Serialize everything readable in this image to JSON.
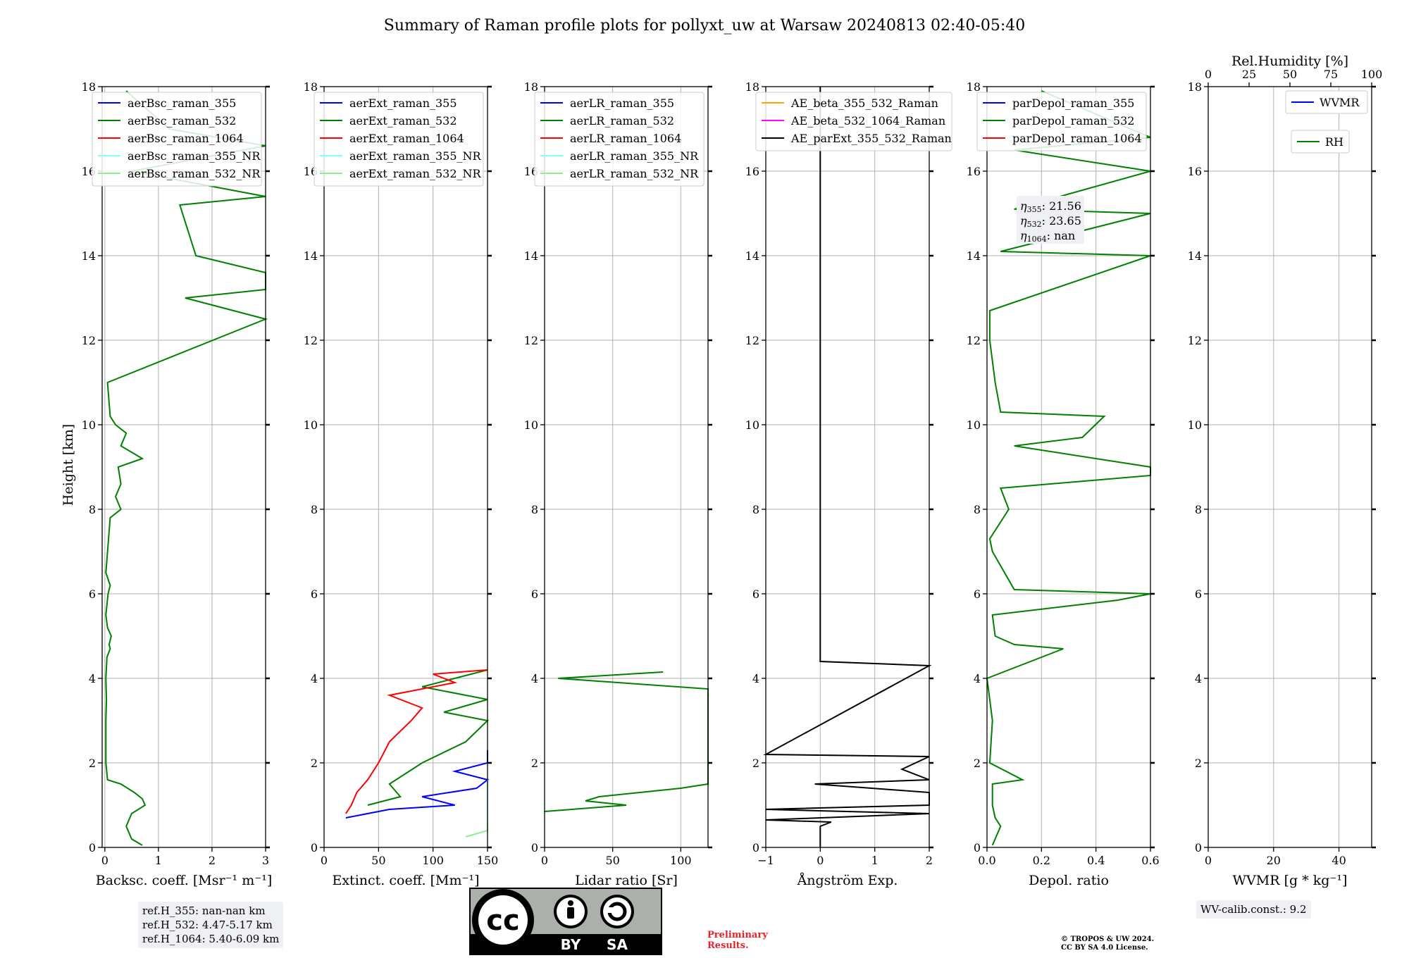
{
  "figure": {
    "title": "Summary of Raman profile plots for pollyxt_uw at Warsaw 20240813 02:40-05:40",
    "ylabel": "Height [km]",
    "y_ticks": [
      "0",
      "2",
      "4",
      "6",
      "8",
      "10",
      "12",
      "14",
      "16",
      "18"
    ],
    "ylim": [
      0,
      18
    ]
  },
  "chart_data": [
    {
      "id": "backscatter",
      "type": "line",
      "xlabel": "Backsc. coeff. [Msr⁻¹ m⁻¹]",
      "xlim": [
        -0.05,
        3
      ],
      "x_ticks": [
        "0",
        "1",
        "2",
        "3"
      ],
      "x_tick_values": [
        0,
        1,
        2,
        3
      ],
      "legend": [
        "aerBsc_raman_355",
        "aerBsc_raman_532",
        "aerBsc_raman_1064",
        "aerBsc_raman_355_NR",
        "aerBsc_raman_532_NR"
      ],
      "legend_colors": [
        "#0000ff",
        "#008000",
        "#ff0000",
        "#7fffff",
        "#90ee90"
      ],
      "legend_location": "upper-left",
      "series": [
        {
          "name": "aerBsc_raman_532",
          "color": "#008000",
          "height_km": [
            0.05,
            0.2,
            0.5,
            0.8,
            1.0,
            1.15,
            1.3,
            1.5,
            1.6,
            2.0,
            2.5,
            3.0,
            3.5,
            4.0,
            4.5,
            4.7,
            4.8,
            5.0,
            5.2,
            5.5,
            6.0,
            6.2,
            6.5,
            7.8,
            8.0,
            8.3,
            8.6,
            9.0,
            9.2,
            9.5,
            9.8,
            10.0,
            10.2,
            11.0,
            12.5,
            13.0,
            13.2,
            13.6,
            14.0,
            15.2,
            15.4,
            16.0,
            16.6,
            17.0,
            17.9
          ],
          "values": [
            0.7,
            0.5,
            0.4,
            0.5,
            0.75,
            0.7,
            0.55,
            0.3,
            0.05,
            0.02,
            0.02,
            0.02,
            0.03,
            0.02,
            0.04,
            0.1,
            0.08,
            0.12,
            0.05,
            0.02,
            0.06,
            0.1,
            0.02,
            0.1,
            0.3,
            0.2,
            0.3,
            0.25,
            0.7,
            0.3,
            0.4,
            0.2,
            0.1,
            0.05,
            3.0,
            1.5,
            3.0,
            3.0,
            1.7,
            1.4,
            3.0,
            0.5,
            3.0,
            1.2,
            0.4
          ]
        }
      ]
    },
    {
      "id": "extinction",
      "type": "line",
      "xlabel": "Extinct. coeff. [Mm⁻¹]",
      "xlim": [
        0,
        150
      ],
      "x_ticks": [
        "0",
        "50",
        "100",
        "150"
      ],
      "x_tick_values": [
        0,
        50,
        100,
        150
      ],
      "legend": [
        "aerExt_raman_355",
        "aerExt_raman_532",
        "aerExt_raman_1064",
        "aerExt_raman_355_NR",
        "aerExt_raman_532_NR"
      ],
      "legend_colors": [
        "#0000ff",
        "#008000",
        "#ff0000",
        "#7fffff",
        "#90ee90"
      ],
      "legend_location": "upper-left",
      "series": [
        {
          "name": "aerExt_raman_355",
          "color": "#0000ff",
          "height_km": [
            0.7,
            0.9,
            1.0,
            1.2,
            1.4,
            1.6,
            1.8,
            2.0,
            2.3
          ],
          "values": [
            20,
            60,
            120,
            90,
            140,
            150,
            120,
            150,
            150
          ]
        },
        {
          "name": "aerExt_raman_532",
          "color": "#008000",
          "height_km": [
            1.0,
            1.2,
            1.5,
            2.0,
            2.5,
            3.0,
            3.2,
            3.5,
            3.8,
            4.0,
            4.2
          ],
          "values": [
            40,
            70,
            60,
            90,
            130,
            150,
            110,
            150,
            90,
            120,
            150
          ]
        },
        {
          "name": "aerExt_raman_1064",
          "color": "#ff0000",
          "height_km": [
            0.8,
            1.0,
            1.3,
            1.6,
            2.0,
            2.5,
            3.0,
            3.3,
            3.6,
            3.9,
            4.1,
            4.2
          ],
          "values": [
            20,
            25,
            30,
            40,
            50,
            60,
            80,
            90,
            60,
            120,
            100,
            150
          ]
        },
        {
          "name": "aerExt_raman_355_NR",
          "color": "#7fffff",
          "height_km": [
            0.4,
            0.6,
            0.8,
            1.0,
            1.2,
            1.4,
            1.6
          ],
          "values": [
            150,
            150,
            150,
            150,
            150,
            150,
            150
          ]
        },
        {
          "name": "aerExt_raman_532_NR",
          "color": "#90ee90",
          "height_km": [
            0.25,
            0.4,
            0.5,
            0.6
          ],
          "values": [
            130,
            150,
            150,
            150
          ]
        }
      ]
    },
    {
      "id": "lidar_ratio",
      "type": "line",
      "xlabel": "Lidar ratio [Sr]",
      "xlim": [
        0,
        120
      ],
      "x_ticks": [
        "0",
        "50",
        "100"
      ],
      "x_tick_values": [
        0,
        50,
        100
      ],
      "legend": [
        "aerLR_raman_355",
        "aerLR_raman_532",
        "aerLR_raman_1064",
        "aerLR_raman_355_NR",
        "aerLR_raman_532_NR"
      ],
      "legend_colors": [
        "#0000ff",
        "#008000",
        "#ff0000",
        "#7fffff",
        "#90ee90"
      ],
      "legend_location": "upper-left",
      "series": [
        {
          "name": "aerLR_raman_532",
          "color": "#008000",
          "height_km": [
            0.85,
            1.0,
            1.1,
            1.2,
            1.3,
            1.4,
            1.5,
            1.6,
            1.8,
            2.2,
            2.4,
            2.6,
            2.8,
            3.1,
            3.4,
            3.6,
            3.75,
            4.0,
            4.15
          ],
          "values": [
            0,
            60,
            30,
            40,
            70,
            100,
            120,
            120,
            120,
            120,
            120,
            120,
            120,
            120,
            120,
            120,
            120,
            10,
            87
          ]
        }
      ]
    },
    {
      "id": "angstrom",
      "type": "line",
      "xlabel": "Ångström Exp.",
      "xlim": [
        -1,
        2
      ],
      "x_ticks": [
        "−1",
        "0",
        "1",
        "2"
      ],
      "x_tick_values": [
        -1,
        0,
        1,
        2
      ],
      "legend": [
        "AE_beta_355_532_Raman",
        "AE_beta_532_1064_Raman",
        "AE_parExt_355_532_Raman"
      ],
      "legend_colors": [
        "#ffa500",
        "#ff00ff",
        "#000000"
      ],
      "legend_location": "upper-left",
      "series": [
        {
          "name": "AE_parExt_355_532_Raman",
          "color": "#000000",
          "height_km": [
            0.0,
            0.5,
            0.6,
            0.65,
            0.8,
            0.9,
            1.0,
            1.3,
            1.5,
            1.6,
            1.85,
            2.15,
            2.2,
            4.3,
            4.4,
            18.0
          ],
          "values": [
            0,
            0,
            0.2,
            -1,
            2,
            -1,
            2,
            2,
            -0.1,
            2,
            1.5,
            2,
            -1,
            2,
            0,
            0
          ]
        }
      ]
    },
    {
      "id": "depol",
      "type": "line",
      "xlabel": "Depol. ratio",
      "xlim": [
        0,
        0.6
      ],
      "x_ticks": [
        "0.0",
        "0.2",
        "0.4",
        "0.6"
      ],
      "x_tick_values": [
        0,
        0.2,
        0.4,
        0.6
      ],
      "legend": [
        "parDepol_raman_355",
        "parDepol_raman_532",
        "parDepol_raman_1064"
      ],
      "legend_colors": [
        "#0000ff",
        "#008000",
        "#ff0000"
      ],
      "legend_location": "upper-left",
      "annotation": {
        "lines": [
          {
            "symbol": "η",
            "sub": "355",
            "value": ": 21.56"
          },
          {
            "symbol": "η",
            "sub": "532",
            "value": ": 23.65"
          },
          {
            "symbol": "η",
            "sub": "1064",
            "value": ": nan"
          }
        ]
      },
      "series": [
        {
          "name": "parDepol_raman_532",
          "color": "#008000",
          "height_km": [
            0.05,
            0.5,
            0.7,
            1.0,
            1.5,
            1.6,
            2.0,
            3.0,
            3.5,
            4.0,
            4.7,
            4.8,
            5.0,
            5.5,
            5.85,
            6.0,
            6.1,
            7.0,
            7.3,
            8.0,
            8.5,
            8.8,
            9.0,
            9.5,
            9.7,
            10.2,
            10.3,
            11.0,
            12.0,
            12.7,
            14.0,
            14.1,
            15.0,
            15.1,
            16.0,
            16.5,
            16.8,
            17.9
          ],
          "values": [
            0.02,
            0.05,
            0.03,
            0.02,
            0.02,
            0.13,
            0.01,
            0.02,
            0.01,
            0.0,
            0.28,
            0.1,
            0.03,
            0.02,
            0.48,
            0.6,
            0.1,
            0.02,
            0.01,
            0.08,
            0.05,
            0.6,
            0.6,
            0.1,
            0.35,
            0.43,
            0.05,
            0.03,
            0.01,
            0.01,
            0.6,
            0.05,
            0.6,
            0.1,
            0.6,
            0.1,
            0.6,
            0.2
          ]
        }
      ]
    },
    {
      "id": "wv",
      "type": "line",
      "xlabel": "WVMR [g * kg⁻¹]",
      "xlim": [
        0,
        50
      ],
      "x_ticks": [
        "0",
        "20",
        "40"
      ],
      "x_tick_values": [
        0,
        20,
        40
      ],
      "top_label": "Rel.Humidity [%]",
      "top_ticks": [
        "0",
        "25",
        "50",
        "75",
        "100"
      ],
      "top_tick_values": [
        0,
        25,
        50,
        75,
        100
      ],
      "legend": [
        "WVMR",
        "RH"
      ],
      "legend_colors": [
        "#0000ff",
        "#008000"
      ],
      "legend_location": "upper-right",
      "series": []
    }
  ],
  "info": {
    "ref_h": [
      "ref.H_355: nan-nan km",
      "ref.H_532: 4.47-5.17 km",
      "ref.H_1064: 5.40-6.09 km"
    ],
    "wv_calib": "WV-calib.const.: 9.2",
    "preliminary": [
      "Preliminary",
      "Results."
    ],
    "copyright": [
      "© TROPOS & UW 2024.",
      "CC BY SA 4.0 License."
    ]
  },
  "license_badge": {
    "top": "cc",
    "by": "BY",
    "sa": "SA"
  }
}
